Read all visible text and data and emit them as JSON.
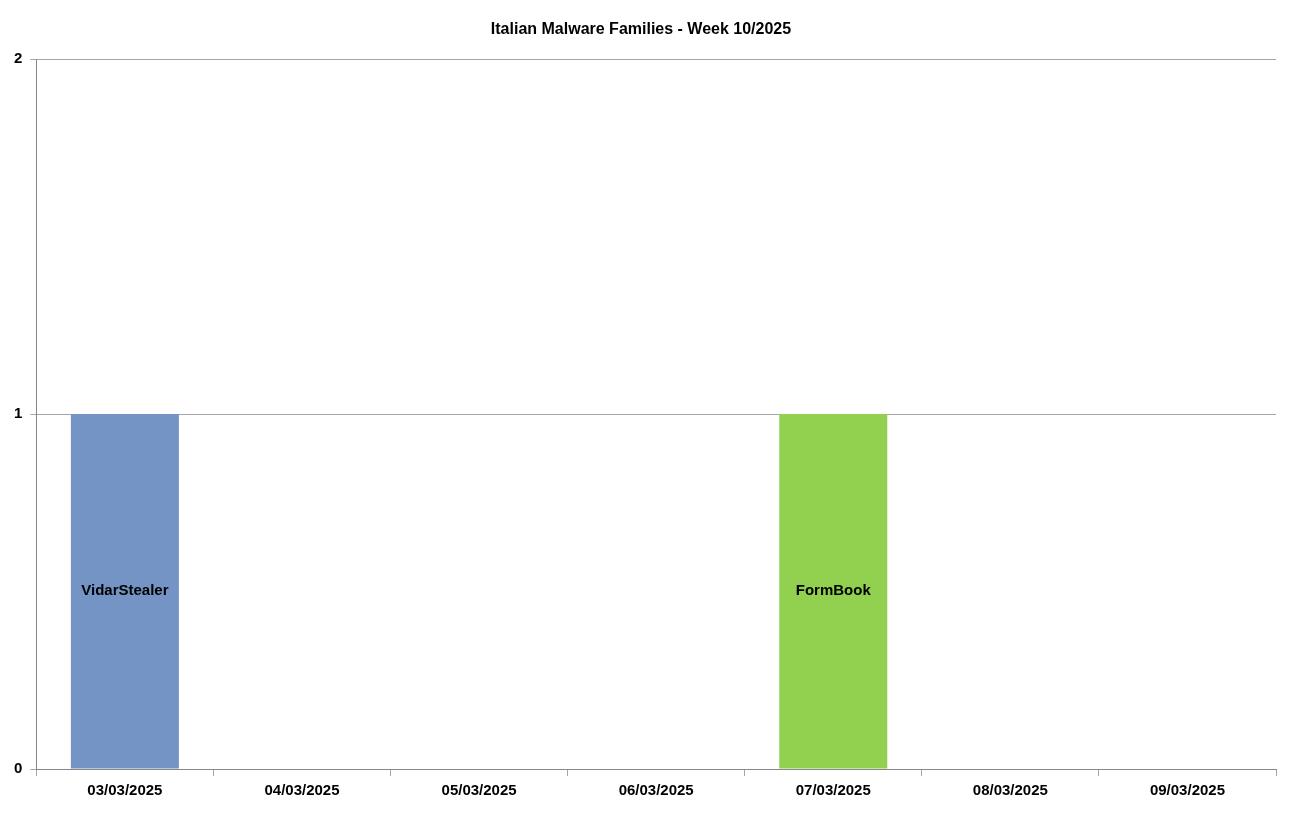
{
  "chart_data": {
    "type": "bar",
    "title": "Italian Malware Families - Week 10/2025",
    "categories": [
      "03/03/2025",
      "04/03/2025",
      "05/03/2025",
      "06/03/2025",
      "07/03/2025",
      "08/03/2025",
      "09/03/2025"
    ],
    "series": [
      {
        "name": "VidarStealer",
        "color": "#7394c4",
        "values": [
          1,
          null,
          null,
          null,
          null,
          null,
          null
        ]
      },
      {
        "name": "FormBook",
        "color": "#92d050",
        "values": [
          null,
          null,
          null,
          null,
          1,
          null,
          null
        ]
      }
    ],
    "stacked": true,
    "ylim": [
      0,
      2
    ],
    "yticks": [
      0,
      1,
      2
    ],
    "grid": "y",
    "legend": false
  }
}
